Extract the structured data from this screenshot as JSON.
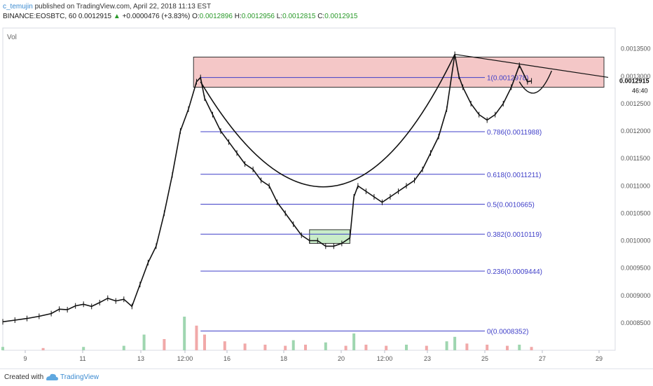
{
  "header": {
    "author": "c_temujin",
    "published": "published on TradingView.com, April 22, 2018 11:13 EST",
    "symbol": "BINANCE:EOSBTC, 60",
    "last": "0.0012915",
    "change_arrow": "▲",
    "change": "+0.0000476 (+3.83%)",
    "o_label": "O:",
    "o": "0.0012896",
    "h_label": "H:",
    "h": "0.0012956",
    "l_label": "L:",
    "l": "0.0012815",
    "c_label": "C:",
    "c": "0.0012915"
  },
  "footer": {
    "created_with": "Created with",
    "brand": "TradingView"
  },
  "chart_data": {
    "type": "candlestick",
    "indicator_label": "Vol",
    "x_ticks": [
      "9",
      "11",
      "13",
      "12:00",
      "16",
      "18",
      "20",
      "12:00",
      "23",
      "25",
      "27",
      "29"
    ],
    "y_ticks": [
      "0.0013500",
      "0.0013000",
      "0.0012500",
      "0.0012000",
      "0.0011500",
      "0.0011000",
      "0.0010500",
      "0.0010000",
      "0.0009500",
      "0.0009000",
      "0.0008500"
    ],
    "y_ticks_values": [
      0.00135,
      0.0013,
      0.00125,
      0.0012,
      0.00115,
      0.0011,
      0.00105,
      0.001,
      0.00095,
      0.0009,
      0.00085
    ],
    "ylim": [
      0.0008,
      0.001388
    ],
    "last_price": "0.0012915",
    "last_price_value": 0.0012915,
    "countdown": "46:40",
    "fib_levels": [
      {
        "label": "1(0.0012978)",
        "value": 0.0012978
      },
      {
        "label": "0.786(0.0011988)",
        "value": 0.0011988
      },
      {
        "label": "0.618(0.0011211)",
        "value": 0.0011211
      },
      {
        "label": "0.5(0.0010665)",
        "value": 0.0010665
      },
      {
        "label": "0.382(0.0010119)",
        "value": 0.0010119
      },
      {
        "label": "0.236(0.0009444)",
        "value": 0.0009444
      },
      {
        "label": "0(0.0008352)",
        "value": 0.0008352
      }
    ],
    "series": [
      {
        "name": "price",
        "points": [
          [
            0,
            0.000852
          ],
          [
            3,
            0.000855
          ],
          [
            6,
            0.000858
          ],
          [
            9,
            0.000862
          ],
          [
            12,
            0.000867
          ],
          [
            14,
            0.000875
          ],
          [
            16,
            0.000874
          ],
          [
            18,
            0.000881
          ],
          [
            20,
            0.000884
          ],
          [
            22,
            0.00088
          ],
          [
            24,
            0.000887
          ],
          [
            26,
            0.000895
          ],
          [
            28,
            0.00089
          ],
          [
            30,
            0.000893
          ],
          [
            32,
            0.00088
          ],
          [
            34,
            0.00092
          ],
          [
            36,
            0.00096
          ],
          [
            38,
            0.00099
          ],
          [
            40,
            0.00105
          ],
          [
            42,
            0.00112
          ],
          [
            44,
            0.0012
          ],
          [
            46,
            0.00124
          ],
          [
            48,
            0.00129
          ],
          [
            49,
            0.0012978
          ],
          [
            50,
            0.00126
          ],
          [
            52,
            0.00123
          ],
          [
            54,
            0.0012
          ],
          [
            56,
            0.00118
          ],
          [
            58,
            0.00116
          ],
          [
            60,
            0.00114
          ],
          [
            62,
            0.00113
          ],
          [
            64,
            0.00111
          ],
          [
            66,
            0.0011
          ],
          [
            68,
            0.00107
          ],
          [
            70,
            0.00105
          ],
          [
            72,
            0.00103
          ],
          [
            74,
            0.00101
          ],
          [
            76,
            0.001
          ],
          [
            78,
            0.001
          ],
          [
            80,
            0.00099
          ],
          [
            82,
            0.00099
          ],
          [
            84,
            0.000995
          ],
          [
            86,
            0.001005
          ],
          [
            87,
            0.00108
          ],
          [
            88,
            0.0011
          ],
          [
            90,
            0.00109
          ],
          [
            92,
            0.00108
          ],
          [
            94,
            0.00107
          ],
          [
            96,
            0.00108
          ],
          [
            98,
            0.00109
          ],
          [
            100,
            0.0011
          ],
          [
            102,
            0.00111
          ],
          [
            104,
            0.00113
          ],
          [
            106,
            0.00116
          ],
          [
            108,
            0.00119
          ],
          [
            110,
            0.00124
          ],
          [
            112,
            0.00134
          ],
          [
            113,
            0.0013
          ],
          [
            114,
            0.00128
          ],
          [
            116,
            0.00125
          ],
          [
            118,
            0.00123
          ],
          [
            120,
            0.00122
          ],
          [
            122,
            0.00123
          ],
          [
            124,
            0.00125
          ],
          [
            126,
            0.00128
          ],
          [
            128,
            0.00132
          ],
          [
            130,
            0.00129
          ],
          [
            131,
            0.0012915
          ]
        ]
      }
    ],
    "volume": [
      [
        0,
        3
      ],
      [
        10,
        2
      ],
      [
        20,
        3
      ],
      [
        30,
        4
      ],
      [
        35,
        14
      ],
      [
        40,
        10
      ],
      [
        45,
        30
      ],
      [
        48,
        22
      ],
      [
        50,
        14
      ],
      [
        55,
        8
      ],
      [
        60,
        6
      ],
      [
        65,
        5
      ],
      [
        70,
        4
      ],
      [
        72,
        9
      ],
      [
        75,
        5
      ],
      [
        80,
        7
      ],
      [
        85,
        4
      ],
      [
        87,
        15
      ],
      [
        90,
        5
      ],
      [
        95,
        4
      ],
      [
        100,
        5
      ],
      [
        105,
        4
      ],
      [
        110,
        8
      ],
      [
        112,
        12
      ],
      [
        115,
        6
      ],
      [
        120,
        5
      ],
      [
        125,
        4
      ],
      [
        128,
        5
      ],
      [
        131,
        3
      ]
    ],
    "annotations": {
      "resistance_zone": [
        0.00128,
        0.001335
      ],
      "accumulation_zone": [
        0.000995,
        0.00102
      ],
      "trendline": [
        [
          112,
          0.00134
        ],
        [
          150,
          0.001298
        ]
      ],
      "cup_curve": "arc from top at x=49 down to low ~0.000985 at x=82 and back up to x=112",
      "handle_curve": "small arc from x=128 down to ~0.00125 and up to x=135"
    }
  }
}
